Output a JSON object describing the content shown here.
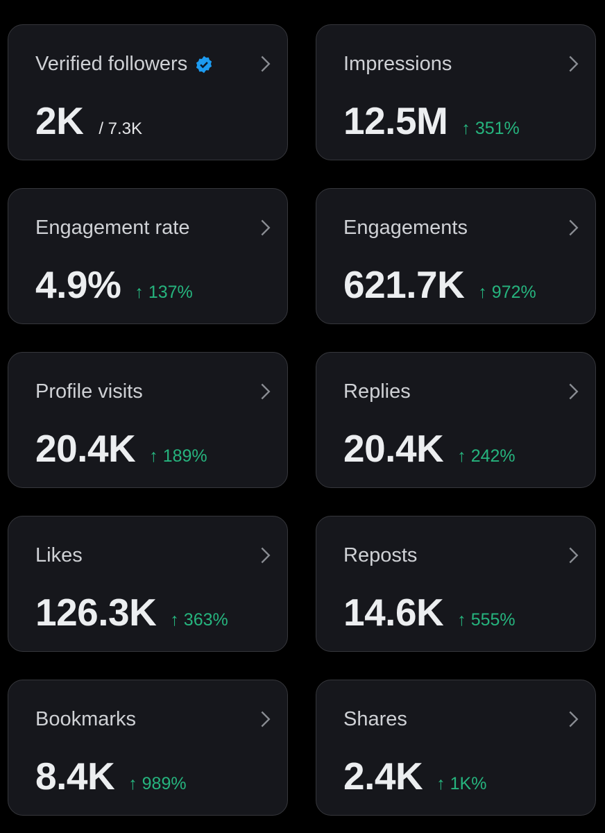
{
  "accent_colors": {
    "up": "#26b47e",
    "verified": "#1d9bf0"
  },
  "cards": [
    {
      "title": "Verified followers",
      "value": "2K",
      "sub": "/ 7.3K",
      "verified": true,
      "icon": "verified-badge-icon"
    },
    {
      "title": "Impressions",
      "value": "12.5M",
      "change": "↑ 351%"
    },
    {
      "title": "Engagement rate",
      "value": "4.9%",
      "change": "↑ 137%"
    },
    {
      "title": "Engagements",
      "value": "621.7K",
      "change": "↑ 972%"
    },
    {
      "title": "Profile visits",
      "value": "20.4K",
      "change": "↑ 189%"
    },
    {
      "title": "Replies",
      "value": "20.4K",
      "change": "↑ 242%"
    },
    {
      "title": "Likes",
      "value": "126.3K",
      "change": "↑ 363%"
    },
    {
      "title": "Reposts",
      "value": "14.6K",
      "change": "↑ 555%"
    },
    {
      "title": "Bookmarks",
      "value": "8.4K",
      "change": "↑ 989%"
    },
    {
      "title": "Shares",
      "value": "2.4K",
      "change": "↑ 1K%"
    }
  ]
}
